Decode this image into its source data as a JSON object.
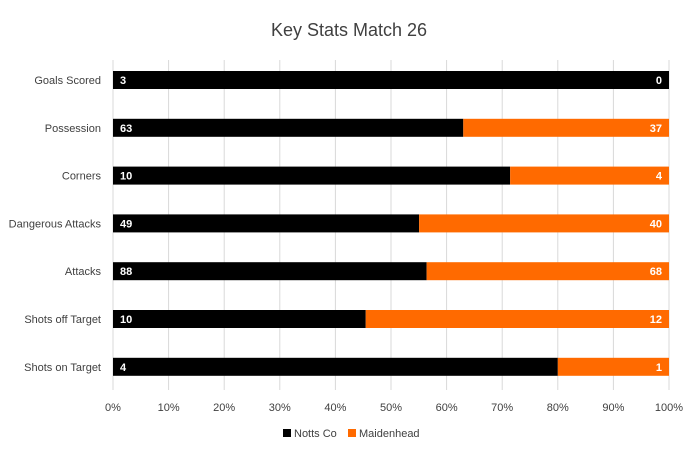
{
  "chart_data": {
    "type": "bar",
    "orientation": "horizontal",
    "stacking": "percent",
    "title": "Key Stats Match 26",
    "categories": [
      "Goals Scored",
      "Possession",
      "Corners",
      "Dangerous Attacks",
      "Attacks",
      "Shots off Target",
      "Shots on Target"
    ],
    "series": [
      {
        "name": "Notts Co",
        "color": "#000000",
        "values": [
          3,
          63,
          10,
          49,
          88,
          10,
          4
        ]
      },
      {
        "name": "Maidenhead",
        "color": "#ff6a00",
        "values": [
          0,
          37,
          4,
          40,
          68,
          12,
          1
        ]
      }
    ],
    "xticks": [
      "0%",
      "10%",
      "20%",
      "30%",
      "40%",
      "50%",
      "60%",
      "70%",
      "80%",
      "90%",
      "100%"
    ],
    "xlim": [
      0,
      100
    ],
    "grid": true,
    "legend": "bottom"
  }
}
